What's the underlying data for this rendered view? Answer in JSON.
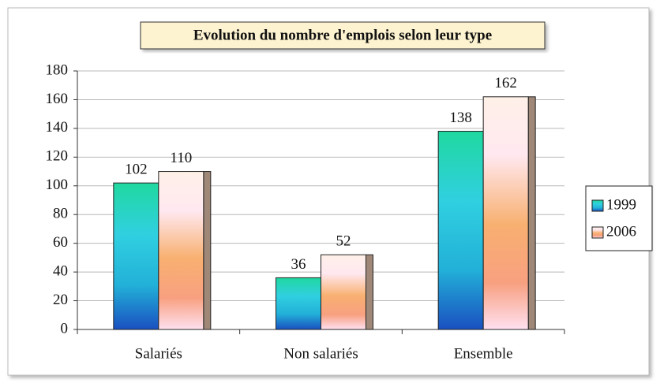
{
  "chart_data": {
    "type": "bar",
    "title": "Evolution du nombre d'emplois selon leur type",
    "categories": [
      "Salariés",
      "Non salariés",
      "Ensemble"
    ],
    "series": [
      {
        "name": "1999",
        "color": "#22b0d8",
        "values": [
          102,
          36,
          138
        ]
      },
      {
        "name": "2006",
        "color": "#f8b070",
        "values": [
          110,
          52,
          162
        ]
      }
    ],
    "ylim": [
      0,
      180
    ],
    "yticks": [
      0,
      20,
      40,
      60,
      80,
      100,
      120,
      140,
      160,
      180
    ],
    "grid": true,
    "legend": "right"
  }
}
